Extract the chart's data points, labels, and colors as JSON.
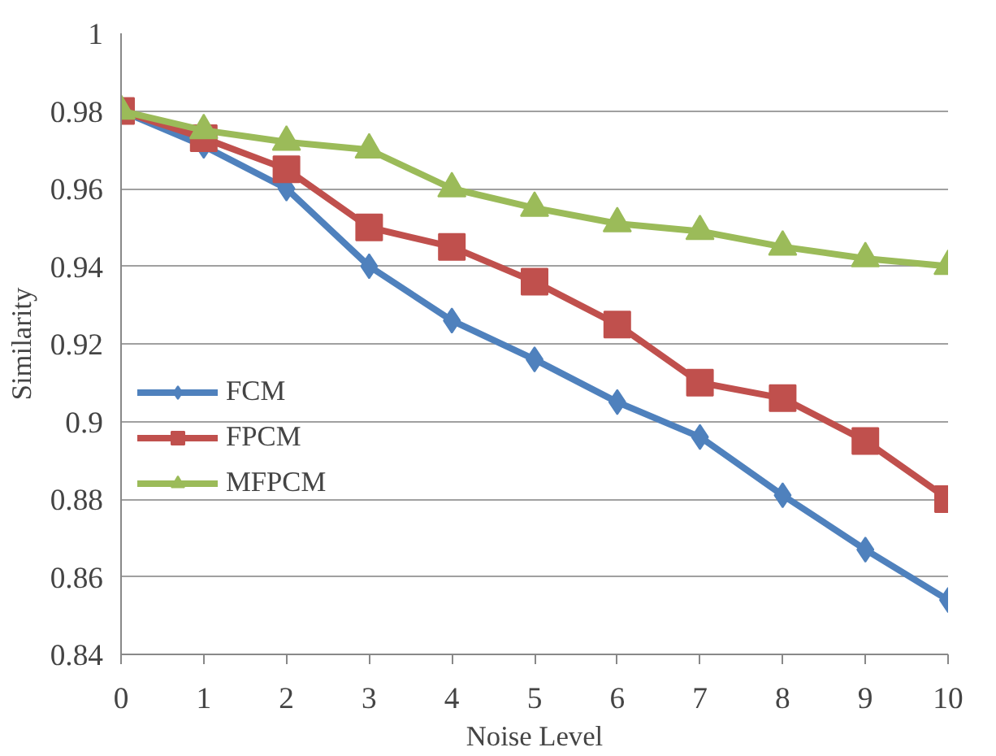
{
  "chart_data": {
    "type": "line",
    "xlabel": "Noise Level",
    "ylabel": "Similarity",
    "x": [
      0,
      1,
      2,
      3,
      4,
      5,
      6,
      7,
      8,
      9,
      10
    ],
    "series": [
      {
        "name": "FCM",
        "color": "#4f81bd",
        "marker": "diamond",
        "values": [
          0.98,
          0.971,
          0.96,
          0.94,
          0.926,
          0.916,
          0.905,
          0.896,
          0.881,
          0.867,
          0.854
        ]
      },
      {
        "name": "FPCM",
        "color": "#c0504d",
        "marker": "square",
        "values": [
          0.98,
          0.973,
          0.965,
          0.95,
          0.945,
          0.936,
          0.925,
          0.91,
          0.906,
          0.895,
          0.88
        ]
      },
      {
        "name": "MFPCM",
        "color": "#9bbb59",
        "marker": "triangle",
        "values": [
          0.98,
          0.975,
          0.972,
          0.97,
          0.96,
          0.955,
          0.951,
          0.949,
          0.945,
          0.942,
          0.94
        ]
      }
    ],
    "xlim": [
      0,
      10
    ],
    "xticks": [
      0,
      1,
      2,
      3,
      4,
      5,
      6,
      7,
      8,
      9,
      10
    ],
    "ylim": [
      0.84,
      1
    ],
    "yticks": [
      0.84,
      0.86,
      0.88,
      0.9,
      0.92,
      0.94,
      0.96,
      0.98,
      1
    ],
    "grid": "y",
    "legend": "left",
    "line_style": "solid"
  }
}
